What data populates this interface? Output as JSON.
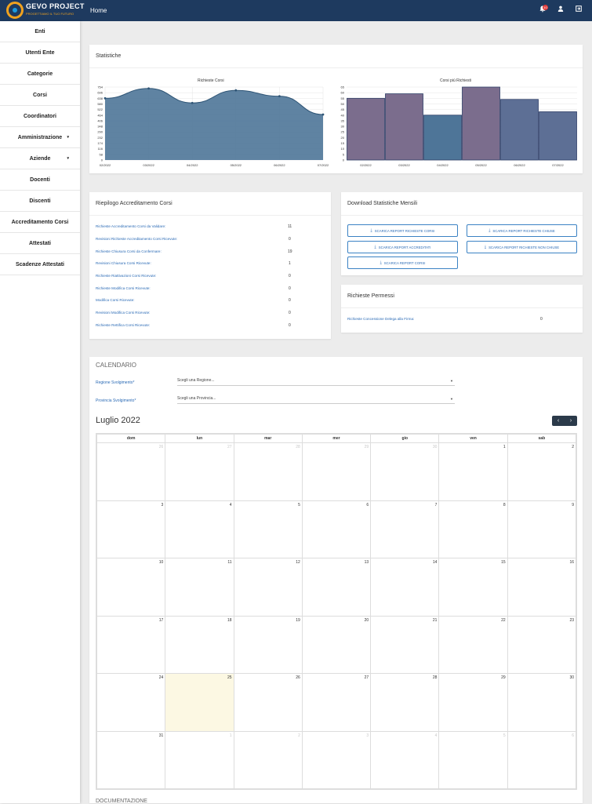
{
  "brand": {
    "name": "GEVO PROJECT",
    "tagline": "PROGETTIAMO IL TUO FUTURO"
  },
  "topbar": {
    "home": "Home",
    "notif_count": "10"
  },
  "sidebar": {
    "items": [
      {
        "label": "Enti"
      },
      {
        "label": "Utenti Ente"
      },
      {
        "label": "Categorie"
      },
      {
        "label": "Corsi"
      },
      {
        "label": "Coordinatori"
      },
      {
        "label": "Amministrazione",
        "caret": "▾"
      },
      {
        "label": "Aziende",
        "caret": "▾"
      },
      {
        "label": "Docenti"
      },
      {
        "label": "Discenti"
      },
      {
        "label": "Accreditamento Corsi"
      },
      {
        "label": "Attestati"
      },
      {
        "label": "Scadenze Attestati"
      }
    ]
  },
  "stats": {
    "title": "Statistiche"
  },
  "chart_data": [
    {
      "type": "area",
      "title": "Richieste Corsi",
      "x": [
        "02/2022",
        "03/2022",
        "04/2022",
        "05/2022",
        "06/2022",
        "07/2022"
      ],
      "y_ticks": [
        "754",
        "696",
        "638",
        "580",
        "522",
        "464",
        "406",
        "348",
        "290",
        "232",
        "174",
        "116",
        "58",
        "0"
      ],
      "series": [
        {
          "values": [
            638,
            740,
            590,
            720,
            660,
            470
          ]
        }
      ],
      "ylim": [
        0,
        754
      ]
    },
    {
      "type": "bar",
      "title": "Corsi più Richiesti",
      "categories": [
        "02/2022",
        "03/2022",
        "04/2022",
        "05/2022",
        "06/2022",
        "07/2022"
      ],
      "y_ticks": [
        "65",
        "60",
        "55",
        "50",
        "45",
        "40",
        "35",
        "30",
        "25",
        "20",
        "15",
        "10",
        "5",
        "0"
      ],
      "values": [
        55,
        59,
        40,
        65,
        54,
        43
      ],
      "ylim": [
        0,
        65
      ]
    }
  ],
  "riepilogo": {
    "title": "Riepilogo Accreditamento Corsi",
    "rows": [
      {
        "label": "Richieste Accreditamento Corsi da Validare:",
        "value": "11"
      },
      {
        "label": "Revisioni Richieste Accreditamento Corsi Ricevute:",
        "value": "0"
      },
      {
        "label": "Richieste Chiusura Corsi da Confermare:",
        "value": "19"
      },
      {
        "label": "Revisioni Chiusura Corsi Ricevute:",
        "value": "1"
      },
      {
        "label": "Richieste Riattivazioni Corsi Ricevute:",
        "value": "0"
      },
      {
        "label": "Richieste Modifica Corsi Ricevute:",
        "value": "0"
      },
      {
        "label": "Modifica Corsi Ricevute:",
        "value": "0"
      },
      {
        "label": "Revisioni Modifica Corsi Ricevute:",
        "value": "0"
      },
      {
        "label": "Richieste Rettifica Corsi Ricevute:",
        "value": "0"
      }
    ]
  },
  "download": {
    "title": "Download Statistiche Mensili",
    "buttons": [
      "SCARICA REPORT RICHIESTE CORSI",
      "SCARICA REPORT RICHIESTE CHIUSE",
      "SCARICA REPORT ACCREDITATI",
      "SCARICA REPORT RICHIESTE NON CHIUSE",
      "SCARICA REPORT CORSI"
    ]
  },
  "permessi": {
    "title": "Richieste Permessi",
    "label": "Richieste Concessione Delega alla Firma:",
    "value": "0"
  },
  "calendar": {
    "title": "CALENDARIO",
    "regione_label": "Regione Svolgimento*",
    "regione_placeholder": "Scegli una Regione...",
    "provincia_label": "Provincia Svolgimento*",
    "provincia_placeholder": "Scegli una Provincia...",
    "month": "Luglio 2022",
    "prev": "‹",
    "next": "›",
    "days": [
      "dom",
      "lun",
      "mar",
      "mer",
      "gio",
      "ven",
      "sab"
    ],
    "weeks": [
      [
        "26",
        "27",
        "28",
        "29",
        "30",
        "1",
        "2"
      ],
      [
        "3",
        "4",
        "5",
        "6",
        "7",
        "8",
        "9"
      ],
      [
        "10",
        "11",
        "12",
        "13",
        "14",
        "15",
        "16"
      ],
      [
        "17",
        "18",
        "19",
        "20",
        "21",
        "22",
        "23"
      ],
      [
        "24",
        "25",
        "26",
        "27",
        "28",
        "29",
        "30"
      ],
      [
        "31",
        "1",
        "2",
        "3",
        "4",
        "5",
        "6"
      ]
    ]
  },
  "docs": {
    "title": "DOCUMENTAZIONE"
  }
}
